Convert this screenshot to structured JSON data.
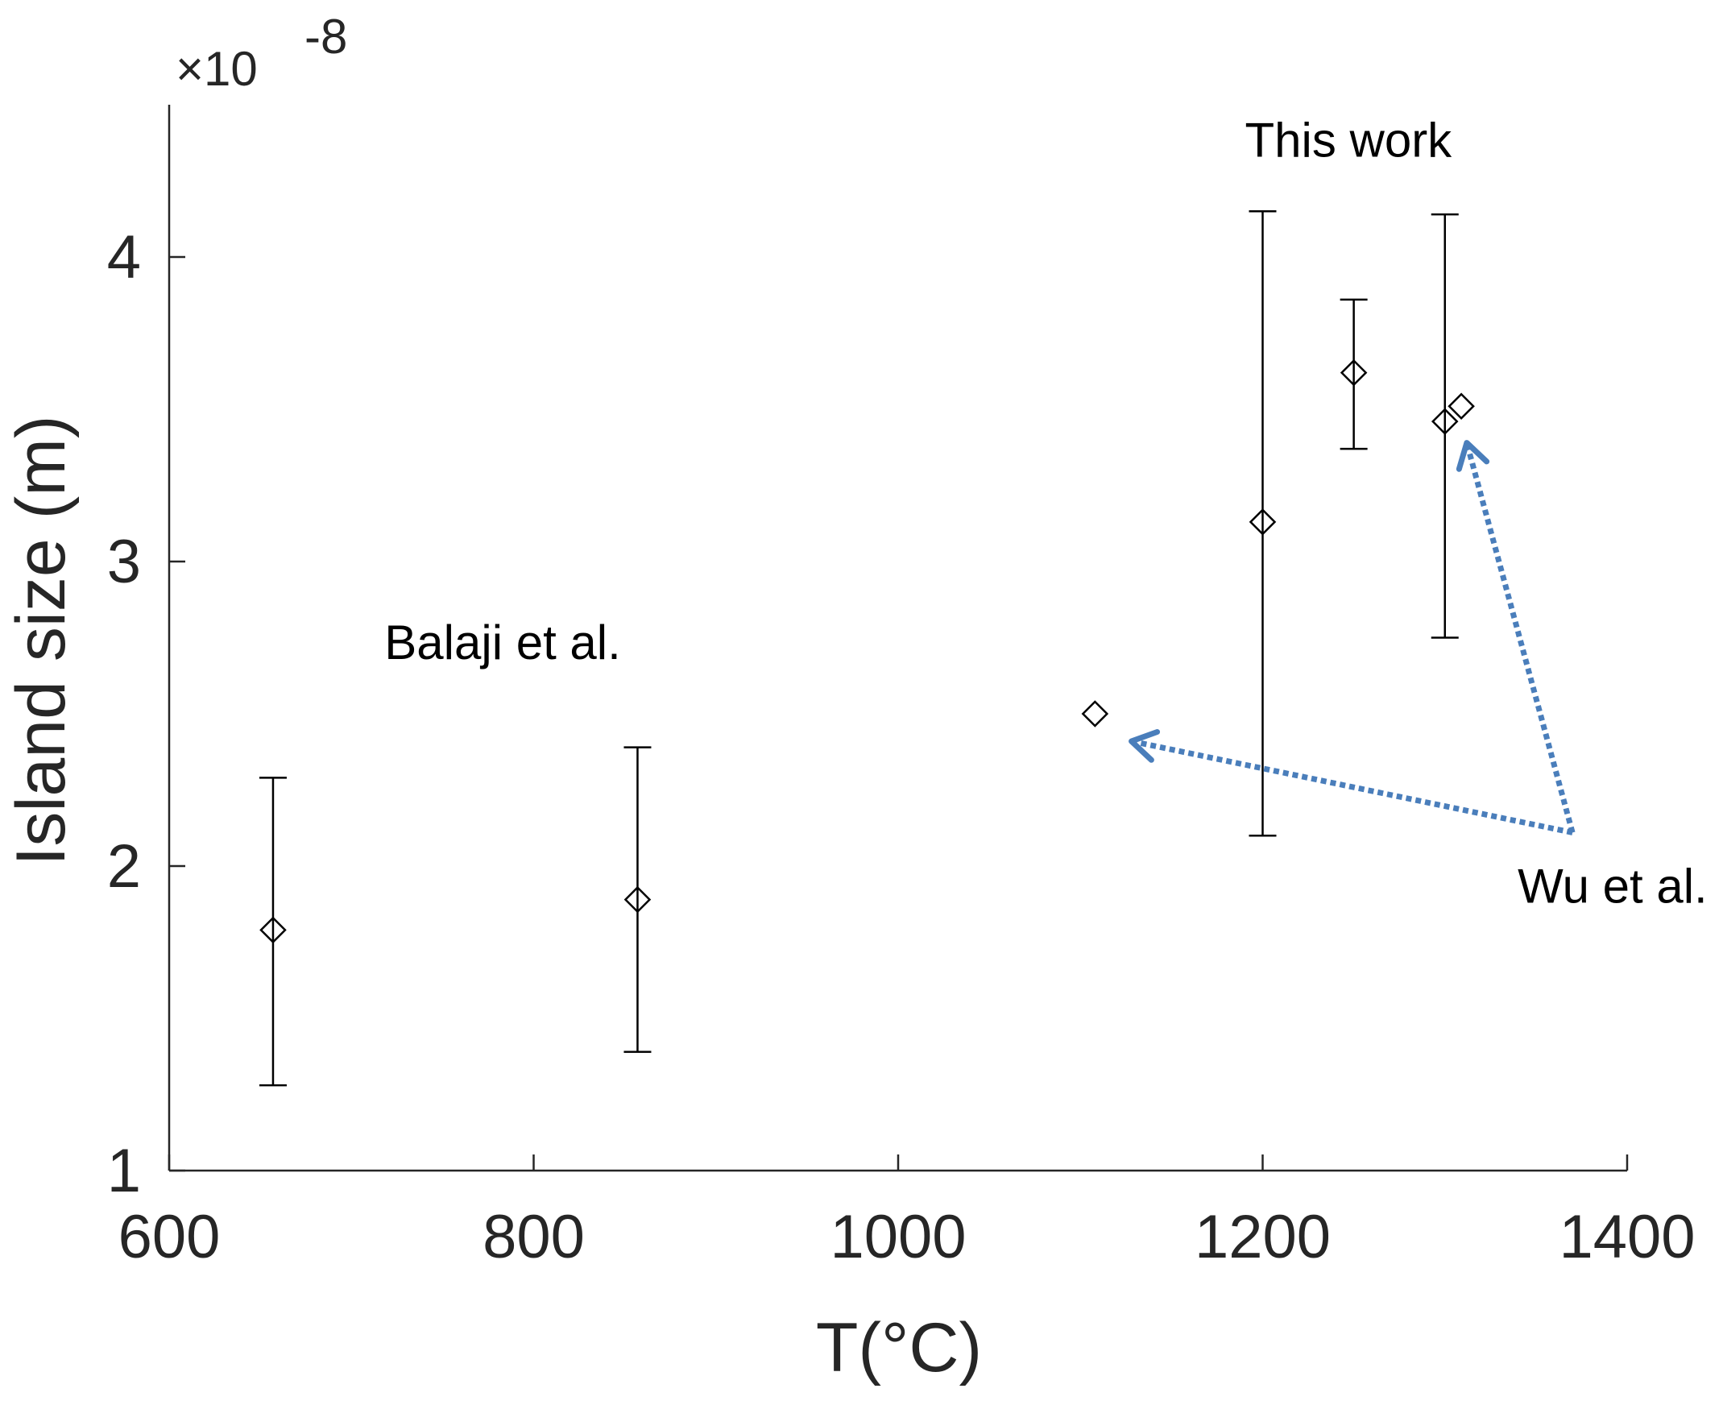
{
  "chart_data": {
    "type": "scatter",
    "title": "",
    "xlabel": "T(°C)",
    "ylabel": "Island size (m)",
    "xlim": [
      600,
      1400
    ],
    "ylim": [
      1,
      4.5
    ],
    "y_exponent_label": "×10",
    "y_exponent_power": "-8",
    "x_ticks": [
      600,
      800,
      1000,
      1200,
      1400
    ],
    "x_tick_labels": [
      "600",
      "800",
      "1000",
      "1200",
      "1400"
    ],
    "y_ticks": [
      1,
      2,
      3,
      4
    ],
    "y_tick_labels": [
      "1",
      "2",
      "3",
      "4"
    ],
    "grid": false,
    "marker": "diamond",
    "series": [
      {
        "name": "Balaji et al.",
        "points": [
          {
            "x": 657,
            "y": 1.79,
            "ylow": 1.28,
            "yhigh": 2.29
          },
          {
            "x": 857,
            "y": 1.89,
            "ylow": 1.39,
            "yhigh": 2.39
          }
        ]
      },
      {
        "name": "This work",
        "points": [
          {
            "x": 1200,
            "y": 3.13,
            "ylow": 2.1,
            "yhigh": 4.15
          },
          {
            "x": 1250,
            "y": 3.62,
            "ylow": 3.37,
            "yhigh": 3.86
          },
          {
            "x": 1300,
            "y": 3.46,
            "ylow": 2.75,
            "yhigh": 4.14
          }
        ]
      },
      {
        "name": "Wu et al.",
        "points": [
          {
            "x": 1108,
            "y": 2.5
          },
          {
            "x": 1309,
            "y": 3.51
          }
        ]
      }
    ],
    "annotations": [
      {
        "text": "Balaji et al.",
        "x": 783,
        "y": 2.68
      },
      {
        "text": "This work",
        "x": 1247,
        "y": 4.33
      },
      {
        "text": "Wu et al.",
        "x": 1392,
        "y": 1.88
      }
    ],
    "arrows": [
      {
        "from": [
          1370,
          2.11
        ],
        "to": [
          1128,
          2.41
        ],
        "color": "#4a7ebb"
      },
      {
        "from": [
          1370,
          2.11
        ],
        "to": [
          1312,
          3.39
        ],
        "color": "#4a7ebb"
      }
    ]
  }
}
